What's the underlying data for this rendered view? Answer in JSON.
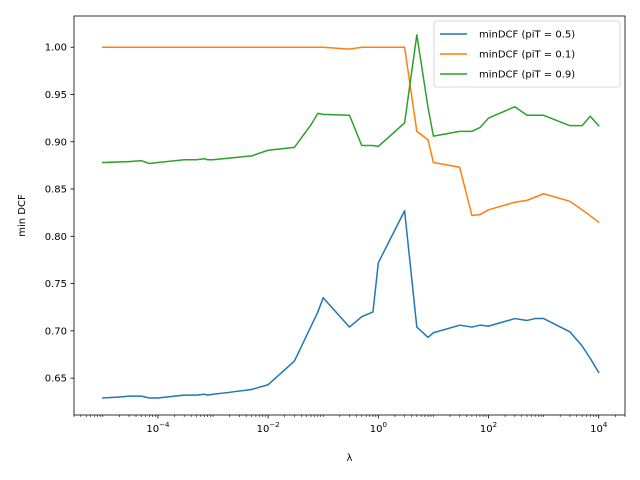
{
  "chart_data": {
    "type": "line",
    "xlabel": "λ",
    "ylabel": "min DCF",
    "xscale": "log",
    "xlim": [
      3e-06,
      30000
    ],
    "ylim": [
      0.611,
      1.033
    ],
    "x_ticks": [
      {
        "value": 0.0001,
        "base": "10",
        "exp": "−4"
      },
      {
        "value": 0.01,
        "base": "10",
        "exp": "−2"
      },
      {
        "value": 1,
        "base": "10",
        "exp": "0"
      },
      {
        "value": 100,
        "base": "10",
        "exp": "2"
      },
      {
        "value": 10000,
        "base": "10",
        "exp": "4"
      }
    ],
    "y_ticks": [
      "0.65",
      "0.70",
      "0.75",
      "0.80",
      "0.85",
      "0.90",
      "0.95",
      "1.00"
    ],
    "legend_position": "upper right",
    "grid": false,
    "series": [
      {
        "name": "minDCF (piT = 0.5)",
        "color": "#1f77b4",
        "x": [
          1e-05,
          2e-05,
          3e-05,
          5e-05,
          7e-05,
          0.0001,
          0.0002,
          0.0003,
          0.0005,
          0.0007,
          0.0008,
          0.001,
          0.002,
          0.005,
          0.01,
          0.03,
          0.05,
          0.08,
          0.1,
          0.3,
          0.5,
          0.8,
          1,
          3,
          5,
          8,
          10,
          30,
          50,
          70,
          100,
          200,
          300,
          500,
          700,
          1000,
          3000,
          5000,
          7000,
          10000
        ],
        "y": [
          0.629,
          0.63,
          0.631,
          0.631,
          0.629,
          0.629,
          0.631,
          0.632,
          0.632,
          0.633,
          0.632,
          0.633,
          0.635,
          0.638,
          0.643,
          0.668,
          0.695,
          0.72,
          0.735,
          0.704,
          0.715,
          0.72,
          0.772,
          0.827,
          0.704,
          0.693,
          0.698,
          0.706,
          0.704,
          0.706,
          0.705,
          0.71,
          0.713,
          0.711,
          0.713,
          0.713,
          0.699,
          0.684,
          0.671,
          0.656
        ]
      },
      {
        "name": "minDCF (piT = 0.1)",
        "color": "#ff7f0e",
        "x": [
          1e-05,
          0.0001,
          0.001,
          0.01,
          0.1,
          0.3,
          0.5,
          1,
          3,
          5,
          8,
          10,
          30,
          50,
          70,
          100,
          300,
          500,
          1000,
          3000,
          5000,
          10000
        ],
        "y": [
          1.0,
          1.0,
          1.0,
          1.0,
          1.0,
          0.998,
          1.0,
          1.0,
          1.0,
          0.911,
          0.902,
          0.878,
          0.873,
          0.822,
          0.823,
          0.828,
          0.836,
          0.838,
          0.845,
          0.837,
          0.828,
          0.815
        ]
      },
      {
        "name": "minDCF (piT = 0.9)",
        "color": "#2ca02c",
        "x": [
          1e-05,
          3e-05,
          5e-05,
          7e-05,
          0.0001,
          0.0003,
          0.0005,
          0.0007,
          0.0008,
          0.001,
          0.005,
          0.01,
          0.03,
          0.06,
          0.08,
          0.1,
          0.3,
          0.5,
          0.8,
          1,
          3,
          5,
          8,
          10,
          30,
          50,
          70,
          100,
          300,
          500,
          1000,
          3000,
          5000,
          7000,
          10000
        ],
        "y": [
          0.878,
          0.879,
          0.88,
          0.877,
          0.878,
          0.881,
          0.881,
          0.882,
          0.881,
          0.881,
          0.885,
          0.891,
          0.894,
          0.918,
          0.93,
          0.929,
          0.928,
          0.896,
          0.896,
          0.895,
          0.92,
          1.013,
          0.936,
          0.906,
          0.911,
          0.911,
          0.915,
          0.925,
          0.937,
          0.928,
          0.928,
          0.917,
          0.917,
          0.927,
          0.917
        ]
      }
    ]
  }
}
